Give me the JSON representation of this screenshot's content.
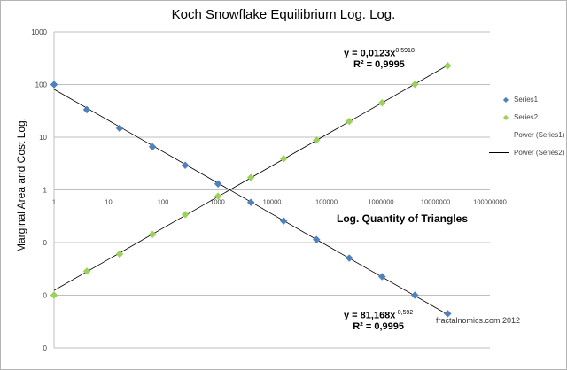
{
  "chart_data": {
    "type": "scatter",
    "title": "Koch Snowflake Equilibrium Log. Log.",
    "xlabel": "Log. Quantity of Triangles",
    "ylabel": "Marginal Area and Cost Log.",
    "xscale": "log",
    "yscale": "log",
    "xlim": [
      1,
      100000000
    ],
    "ylim": [
      0.001,
      1000
    ],
    "x_tick_labels": [
      "1",
      "10",
      "100",
      "1000",
      "10000",
      "100000",
      "1000000",
      "10000000",
      "100000000"
    ],
    "y_tick_labels": [
      "1000",
      "100",
      "10",
      "1",
      "0",
      "0",
      "0"
    ],
    "grid": "horizontal",
    "legend_position": "right",
    "x": [
      1,
      4,
      16,
      64,
      256,
      1024,
      4096,
      16384,
      65536,
      262144,
      1048576,
      4194304,
      16777216
    ],
    "series": [
      {
        "name": "Series1",
        "color": "#4f81bd",
        "marker": "diamond",
        "values": [
          100,
          33.3,
          14.8,
          6.58,
          2.93,
          1.3,
          0.578,
          0.257,
          0.114,
          0.0507,
          0.0225,
          0.01,
          0.00445
        ]
      },
      {
        "name": "Series2",
        "color": "#9bd35a",
        "marker": "diamond",
        "values": [
          0.01,
          0.0286,
          0.0606,
          0.143,
          0.34,
          0.76,
          1.71,
          3.9,
          8.8,
          20,
          45,
          101,
          228
        ]
      }
    ],
    "trendlines": [
      {
        "name": "Power (Series1)",
        "equation": "y = 81,168x^-0,592",
        "r2": "R² = 0,9995",
        "a": 81.168,
        "b": -0.592
      },
      {
        "name": "Power (Series2)",
        "equation": "y = 0,0123x^0,5918",
        "r2": "R² = 0,9995",
        "a": 0.0123,
        "b": 0.5918
      }
    ],
    "annotations": [
      "fractalnomics.com 2012"
    ]
  },
  "labels": {
    "title": "Koch Snowflake Equilibrium Log. Log.",
    "xlabel": "Log. Quantity of Triangles",
    "ylabel": "Marginal Area and Cost Log.",
    "eq2_main": "y = 0,0123x",
    "eq2_exp": "0,5918",
    "eq2_r2": "R² = 0,9995",
    "eq1_main": "y = 81,168x",
    "eq1_exp": "-0,592",
    "eq1_r2": "R² = 0,9995",
    "credit": "fractalnomics.com 2012"
  },
  "legend": [
    {
      "label": "Series1",
      "symbol": "◆",
      "color": "#4f81bd"
    },
    {
      "label": "Series2",
      "symbol": "◆",
      "color": "#9bd35a"
    },
    {
      "label": "Power (Series1)",
      "symbol": "line",
      "color": "#000000"
    },
    {
      "label": "Power (Series2)",
      "symbol": "line",
      "color": "#000000"
    }
  ]
}
